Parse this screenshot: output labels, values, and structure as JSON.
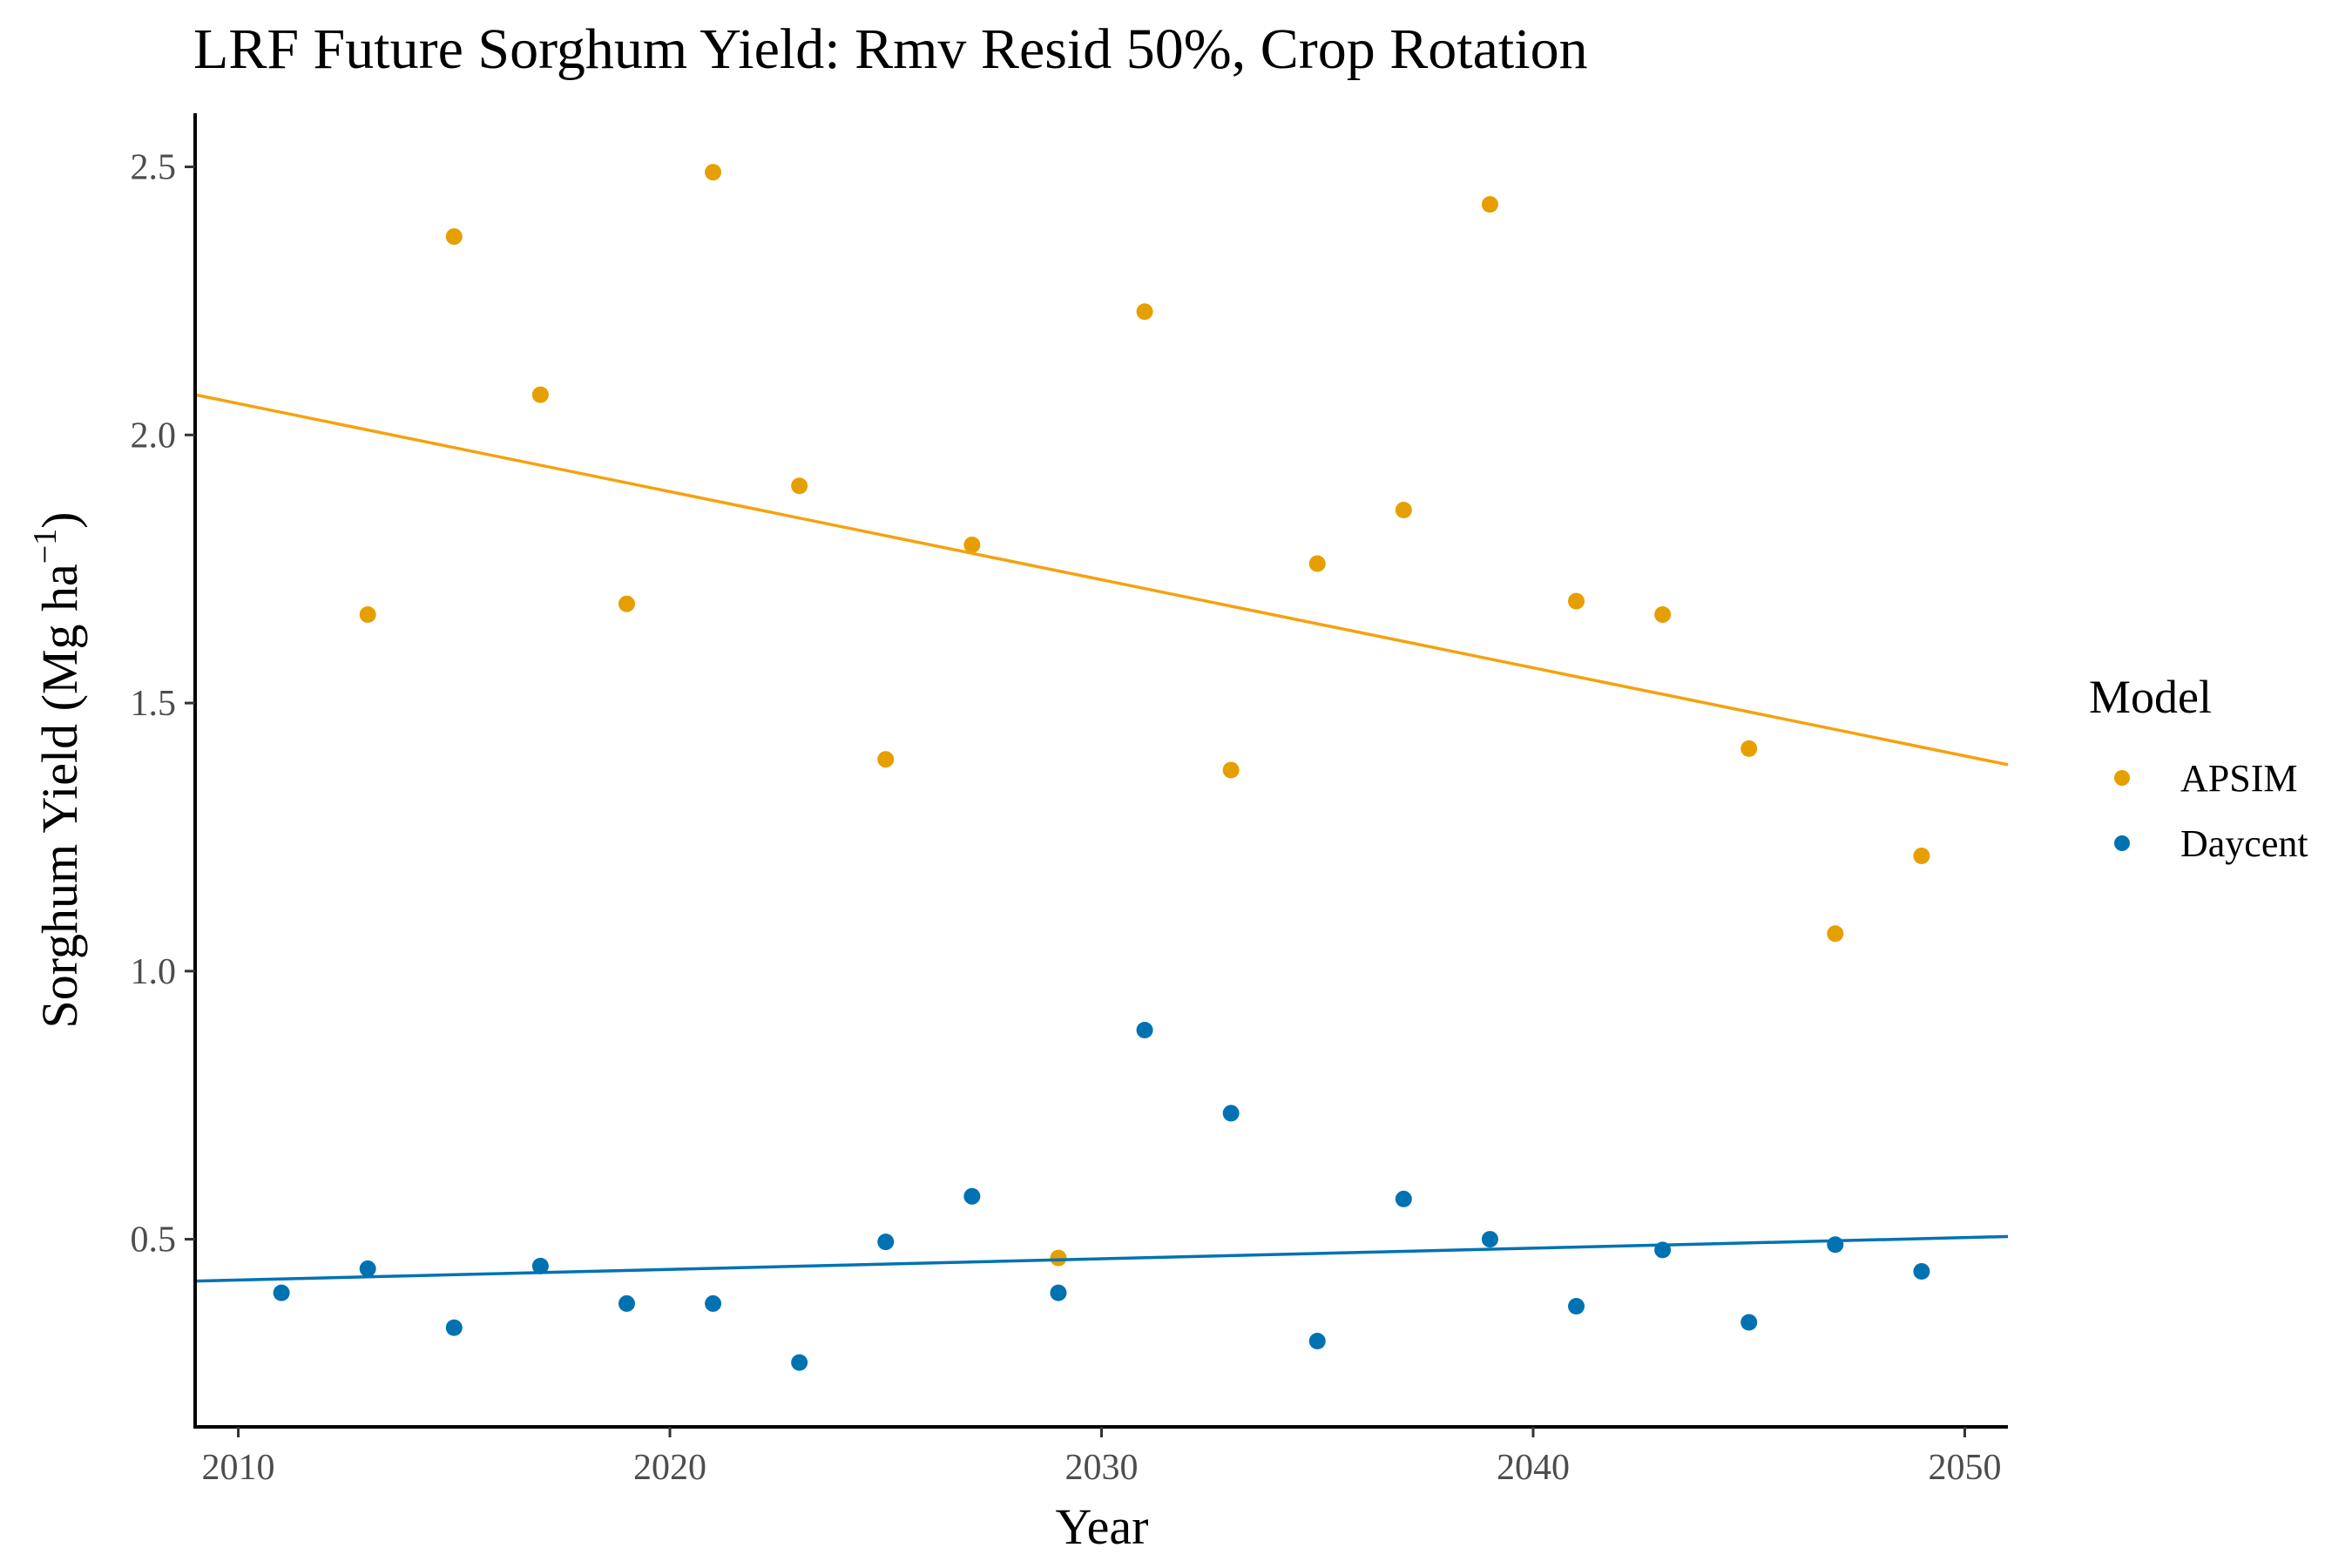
{
  "chart_data": {
    "type": "scatter",
    "title": "LRF Future Sorghum Yield:  Rmv Resid 50%, Crop Rotation",
    "xlabel": "Year",
    "ylabel_main": "Sorghum Yield (Mg ha",
    "ylabel_sup": "−1",
    "ylabel_end": ")",
    "xlim": [
      2009,
      2051
    ],
    "ylim": [
      0.15,
      2.6
    ],
    "x_ticks": [
      2010,
      2020,
      2030,
      2040,
      2050
    ],
    "x_tick_labels": [
      "2010",
      "2020",
      "2030",
      "2040",
      "2050"
    ],
    "y_ticks": [
      0.5,
      1.0,
      1.5,
      2.0,
      2.5
    ],
    "y_tick_labels": [
      "0.5",
      "1.0",
      "1.5",
      "2.0",
      "2.5"
    ],
    "grid": false,
    "legend_title": "Model",
    "legend_position": "right",
    "series": [
      {
        "name": "APSIM",
        "color": "#E69F00",
        "line_color": "#F5A20F",
        "x": [
          2013,
          2015,
          2017,
          2019,
          2021,
          2023,
          2025,
          2027,
          2029,
          2031,
          2033,
          2035,
          2037,
          2039,
          2041,
          2043,
          2045,
          2047,
          2049
        ],
        "y": [
          1.665,
          2.37,
          2.075,
          1.685,
          2.49,
          1.905,
          1.395,
          1.795,
          0.465,
          2.23,
          1.375,
          1.76,
          1.86,
          2.43,
          1.69,
          1.665,
          1.415,
          1.07,
          1.215
        ],
        "trend": {
          "x": [
            2009,
            2051
          ],
          "y": [
            2.075,
            1.385
          ]
        }
      },
      {
        "name": "Daycent",
        "color": "#0072B2",
        "line_color": "#0072B2",
        "x": [
          2011,
          2013,
          2015,
          2017,
          2019,
          2021,
          2023,
          2025,
          2027,
          2029,
          2031,
          2033,
          2035,
          2037,
          2039,
          2041,
          2043,
          2045,
          2047,
          2049
        ],
        "y": [
          0.4,
          0.445,
          0.335,
          0.45,
          0.38,
          0.38,
          0.27,
          0.495,
          0.58,
          0.4,
          0.89,
          0.735,
          0.31,
          0.575,
          0.5,
          0.375,
          0.48,
          0.345,
          0.49,
          0.44
        ],
        "trend": {
          "x": [
            2009,
            2051
          ],
          "y": [
            0.422,
            0.505
          ]
        }
      }
    ]
  }
}
